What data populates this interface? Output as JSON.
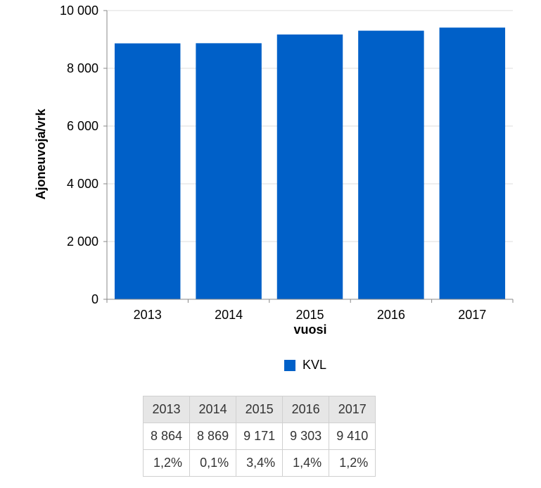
{
  "chart_data": {
    "type": "bar",
    "categories": [
      "2013",
      "2014",
      "2015",
      "2016",
      "2017"
    ],
    "series": [
      {
        "name": "KVL",
        "values": [
          8864,
          8869,
          9171,
          9303,
          9410
        ],
        "color": "#0060c8"
      }
    ],
    "xlabel": "vuosi",
    "ylabel": "Ajoneuvoja/vrk",
    "ylim": [
      0,
      10000
    ],
    "yticks": [
      0,
      2000,
      4000,
      6000,
      8000,
      10000
    ],
    "ytick_labels": [
      "0",
      "2 000",
      "4 000",
      "6 000",
      "8 000",
      "10 000"
    ],
    "grid": true,
    "legend_position": "bottom"
  },
  "legend": {
    "label": "KVL"
  },
  "table": {
    "headers": [
      "2013",
      "2014",
      "2015",
      "2016",
      "2017"
    ],
    "rows": [
      [
        "8 864",
        "8 869",
        "9 171",
        "9 303",
        "9 410"
      ],
      [
        "1,2%",
        "0,1%",
        "3,4%",
        "1,4%",
        "1,2%"
      ]
    ]
  }
}
